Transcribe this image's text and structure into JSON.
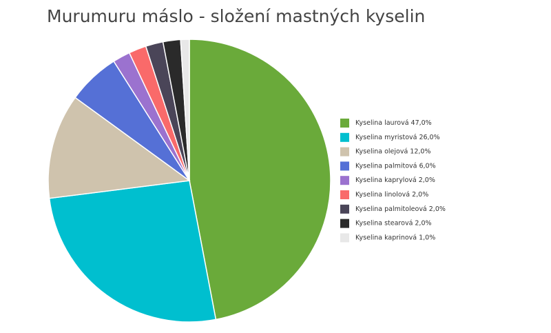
{
  "chart_data": {
    "type": "pie",
    "title": "Murumuru máslo - složení mastných kyselin",
    "categories": [
      "Kyselina laurová",
      "Kyselina myristová",
      "Kyselina olejová",
      "Kyselina palmitová",
      "Kyselina kaprylová",
      "Kyselina linolová",
      "Kyselina palmitoleová",
      "Kyselina stearová",
      "Kyselina kaprinová"
    ],
    "values": [
      47,
      26,
      12,
      6,
      2,
      2,
      2,
      2,
      1
    ],
    "value_labels": [
      "47,0%",
      "26,0%",
      "12,0%",
      "6,0%",
      "2,0%",
      "2,0%",
      "2,0%",
      "2,0%",
      "1,0%"
    ],
    "colors": [
      "#6aaa3a",
      "#00bfcf",
      "#cfc3ad",
      "#5570d6",
      "#9b72cf",
      "#f96a6a",
      "#4a4558",
      "#2a2a2a",
      "#e8e8e8"
    ],
    "legend": "right"
  }
}
